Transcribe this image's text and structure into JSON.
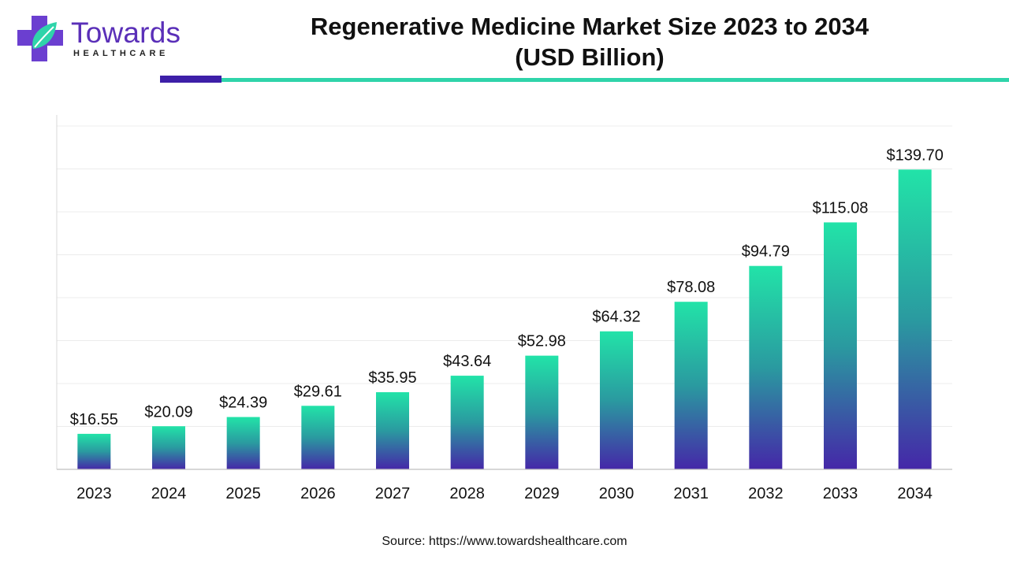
{
  "header": {
    "logo_name": "Towards",
    "logo_sub": "HEALTHCARE",
    "title_line1": "Regenerative Medicine Market Size 2023 to 2034",
    "title_line2": "(USD Billion)"
  },
  "footer": {
    "source": "Source: https://www.towardshealthcare.com"
  },
  "colors": {
    "bar_top": "#22e3a8",
    "bar_mid": "#2a9aa0",
    "bar_bottom": "#4527a8",
    "accent_purple": "#3d1fa8",
    "accent_teal": "#2fd4aa",
    "logo_purple": "#5a2fb8"
  },
  "chart_data": {
    "type": "bar",
    "categories": [
      "2023",
      "2024",
      "2025",
      "2026",
      "2027",
      "2028",
      "2029",
      "2030",
      "2031",
      "2032",
      "2033",
      "2034"
    ],
    "values": [
      16.55,
      20.09,
      24.39,
      29.61,
      35.95,
      43.64,
      52.98,
      64.32,
      78.08,
      94.79,
      115.08,
      139.7
    ],
    "labels": [
      "$16.55",
      "$20.09",
      "$24.39",
      "$29.61",
      "$35.95",
      "$43.64",
      "$52.98",
      "$64.32",
      "$78.08",
      "$94.79",
      "$115.08",
      "$139.70"
    ],
    "title": "Regenerative Medicine Market Size 2023 to 2034 (USD Billion)",
    "xlabel": "",
    "ylabel": "",
    "ylim": [
      0,
      160
    ],
    "grid": true,
    "legend": "none"
  }
}
